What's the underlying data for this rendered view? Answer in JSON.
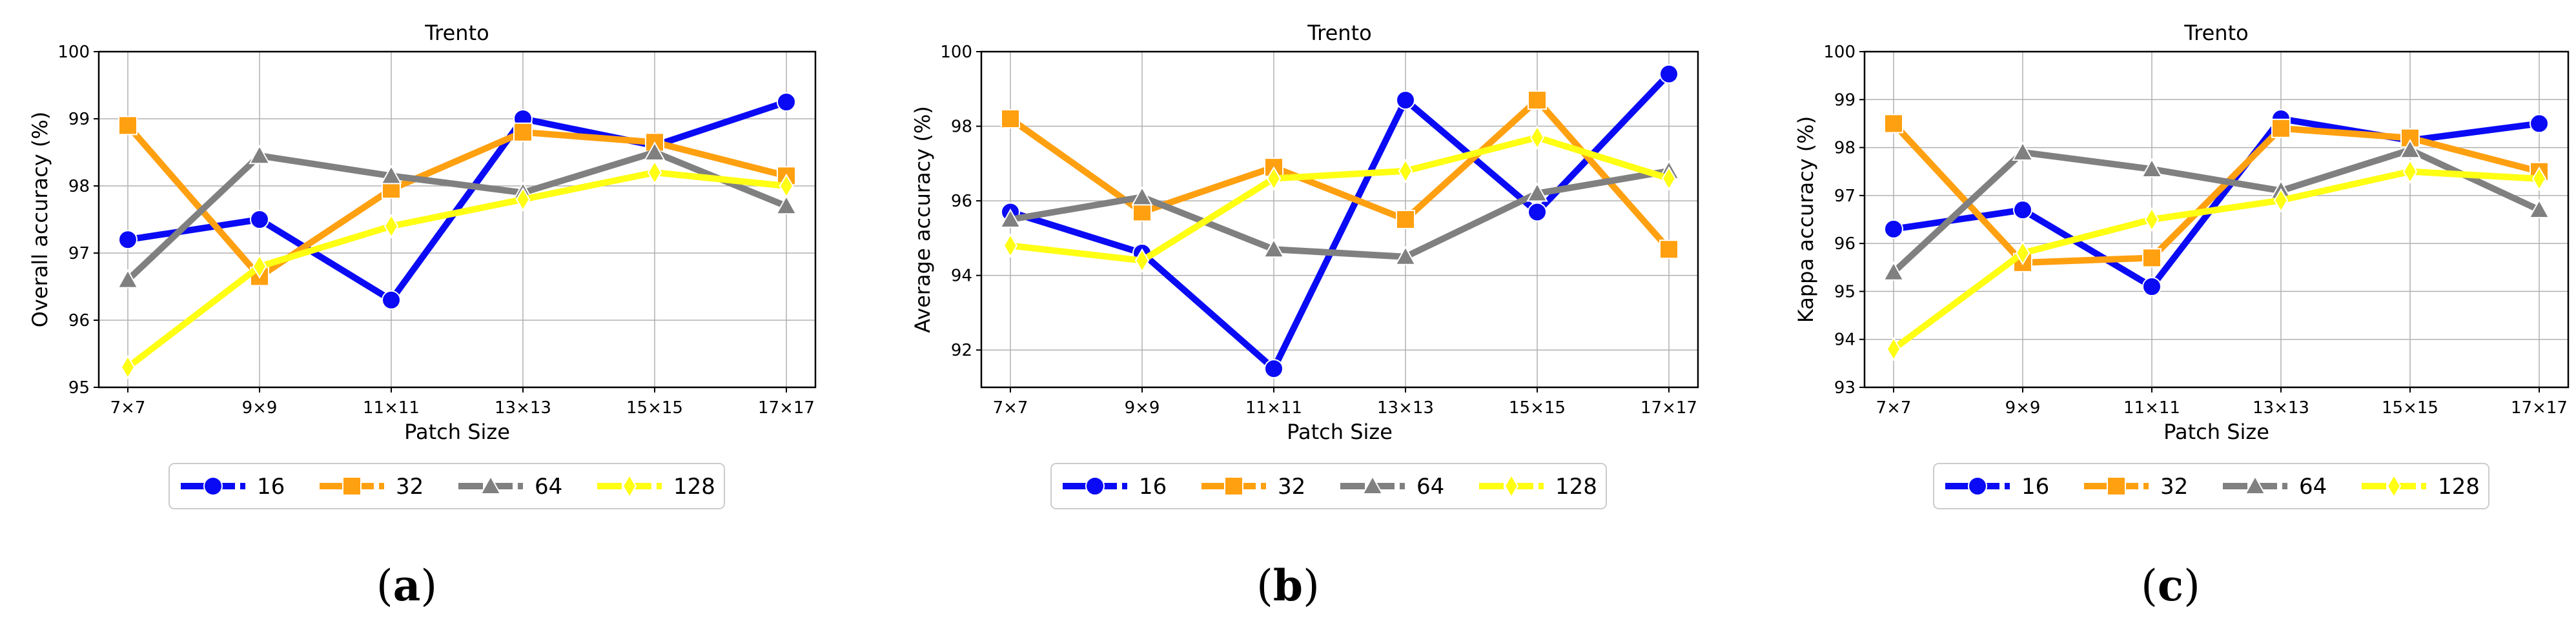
{
  "colors": {
    "16": "#0a0af5",
    "32": "#ffa010",
    "64": "#808080",
    "128": "#ffff14"
  },
  "markers": [
    "circle",
    "square",
    "triangle",
    "diamond"
  ],
  "legend": {
    "placement": "below"
  },
  "chart_data": [
    {
      "type": "line",
      "caption_letter": "a",
      "title": "Trento",
      "xlabel": "Patch Size",
      "ylabel": "Overall accuracy (%)",
      "categories": [
        "7×7",
        "9×9",
        "11×11",
        "13×13",
        "15×15",
        "17×17"
      ],
      "ylim": [
        95,
        100
      ],
      "yticks": [
        95,
        96,
        97,
        98,
        99,
        100
      ],
      "grid": true,
      "series": [
        {
          "name": "16",
          "values": [
            97.2,
            97.5,
            96.3,
            99.0,
            98.6,
            99.25
          ]
        },
        {
          "name": "32",
          "values": [
            98.9,
            96.65,
            97.95,
            98.8,
            98.65,
            98.15
          ]
        },
        {
          "name": "64",
          "values": [
            96.6,
            98.45,
            98.15,
            97.9,
            98.5,
            97.7
          ]
        },
        {
          "name": "128",
          "values": [
            95.3,
            96.8,
            97.4,
            97.8,
            98.2,
            98.0
          ]
        }
      ]
    },
    {
      "type": "line",
      "caption_letter": "b",
      "title": "Trento",
      "xlabel": "Patch Size",
      "ylabel": "Average accuracy (%)",
      "categories": [
        "7×7",
        "9×9",
        "11×11",
        "13×13",
        "15×15",
        "17×17"
      ],
      "ylim": [
        91,
        100
      ],
      "yticks": [
        92,
        94,
        96,
        98,
        100
      ],
      "grid": true,
      "series": [
        {
          "name": "16",
          "values": [
            95.7,
            94.6,
            91.5,
            98.7,
            95.7,
            99.4
          ]
        },
        {
          "name": "32",
          "values": [
            98.2,
            95.7,
            96.9,
            95.5,
            98.7,
            94.7
          ]
        },
        {
          "name": "64",
          "values": [
            95.5,
            96.1,
            94.7,
            94.5,
            96.2,
            96.8
          ]
        },
        {
          "name": "128",
          "values": [
            94.8,
            94.4,
            96.6,
            96.8,
            97.7,
            96.6
          ]
        }
      ]
    },
    {
      "type": "line",
      "caption_letter": "c",
      "title": "Trento",
      "xlabel": "Patch Size",
      "ylabel": "Kappa accuracy (%)",
      "categories": [
        "7×7",
        "9×9",
        "11×11",
        "13×13",
        "15×15",
        "17×17"
      ],
      "ylim": [
        93,
        100
      ],
      "yticks": [
        93,
        94,
        95,
        96,
        97,
        98,
        99,
        100
      ],
      "grid": true,
      "series": [
        {
          "name": "16",
          "values": [
            96.3,
            96.7,
            95.1,
            98.6,
            98.15,
            98.5
          ]
        },
        {
          "name": "32",
          "values": [
            98.5,
            95.6,
            95.7,
            98.4,
            98.2,
            97.5
          ]
        },
        {
          "name": "64",
          "values": [
            95.4,
            97.9,
            97.55,
            97.1,
            97.95,
            96.7
          ]
        },
        {
          "name": "128",
          "values": [
            93.8,
            95.8,
            96.5,
            96.9,
            97.5,
            97.35
          ]
        }
      ]
    }
  ]
}
